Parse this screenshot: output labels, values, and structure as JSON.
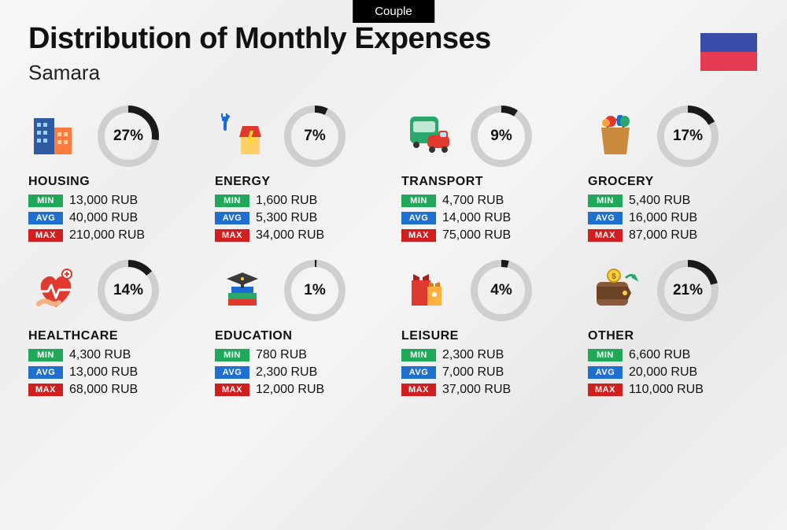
{
  "tag": "Couple",
  "title": "Distribution of Monthly Expenses",
  "subtitle": "Samara",
  "currency": "RUB",
  "flag_colors": [
    "#3b4ba8",
    "#e63a52"
  ],
  "colors": {
    "min_badge": "#1fa858",
    "avg_badge": "#1f6fd1",
    "max_badge": "#d11f1f",
    "donut_track": "#cfcfcf",
    "donut_fill": "#1a1a1a",
    "text": "#111111",
    "tag_bg": "#000000"
  },
  "badges": {
    "min": "MIN",
    "avg": "AVG",
    "max": "MAX"
  },
  "donut": {
    "size": 78,
    "stroke": 9
  },
  "categories": [
    {
      "key": "housing",
      "name": "HOUSING",
      "percent": 27,
      "min": "13,000",
      "avg": "40,000",
      "max": "210,000"
    },
    {
      "key": "energy",
      "name": "ENERGY",
      "percent": 7,
      "min": "1,600",
      "avg": "5,300",
      "max": "34,000"
    },
    {
      "key": "transport",
      "name": "TRANSPORT",
      "percent": 9,
      "min": "4,700",
      "avg": "14,000",
      "max": "75,000"
    },
    {
      "key": "grocery",
      "name": "GROCERY",
      "percent": 17,
      "min": "5,400",
      "avg": "16,000",
      "max": "87,000"
    },
    {
      "key": "healthcare",
      "name": "HEALTHCARE",
      "percent": 14,
      "min": "4,300",
      "avg": "13,000",
      "max": "68,000"
    },
    {
      "key": "education",
      "name": "EDUCATION",
      "percent": 1,
      "min": "780",
      "avg": "2,300",
      "max": "12,000"
    },
    {
      "key": "leisure",
      "name": "LEISURE",
      "percent": 4,
      "min": "2,300",
      "avg": "7,000",
      "max": "37,000"
    },
    {
      "key": "other",
      "name": "OTHER",
      "percent": 21,
      "min": "6,600",
      "avg": "20,000",
      "max": "110,000"
    }
  ]
}
